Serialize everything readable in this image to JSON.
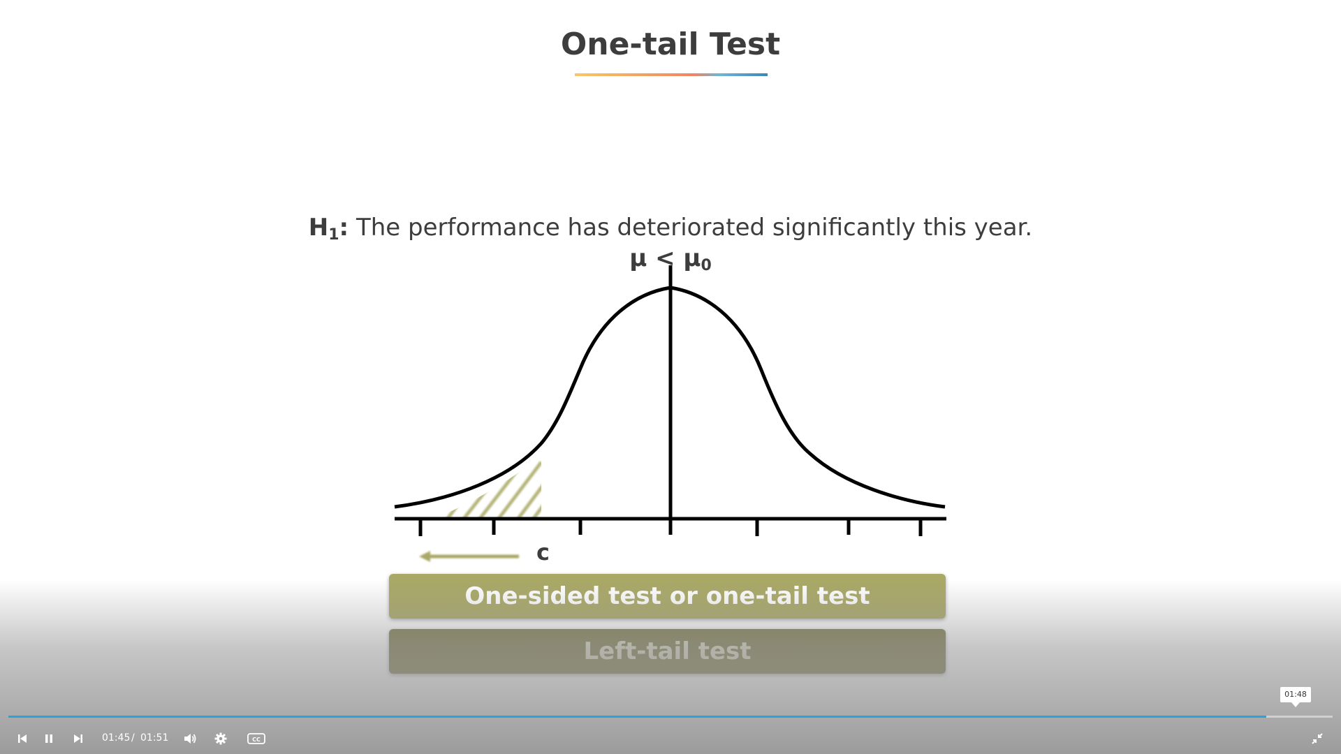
{
  "slide": {
    "title": "One-tail Test",
    "hypothesis_label": "H",
    "hypothesis_sub": "1",
    "hypothesis_colon": ":",
    "hypothesis_text": " The performance has deteriorated significantly this year.",
    "formula_mu": "μ < μ",
    "formula_sub": "0",
    "critical_label": "c",
    "banner_primary": "One-sided test or one-tail test",
    "banner_secondary": "Left-tail test"
  },
  "player": {
    "current_time": "01:45",
    "separator": "/",
    "duration": "01:51",
    "hover_time": "01:48",
    "progress_fraction": 0.95,
    "accent_color": "#2aa4d8"
  },
  "icons": {
    "previous": "skip-previous-icon",
    "pause": "pause-icon",
    "next": "skip-next-icon",
    "volume": "volume-icon",
    "settings": "gear-icon",
    "captions": "closed-captions-icon",
    "exit_fullscreen": "exit-fullscreen-icon"
  },
  "colors": {
    "olive_light": "#a9a866",
    "olive_dark": "#7e7c4e",
    "hatch": "#b5b57a"
  }
}
